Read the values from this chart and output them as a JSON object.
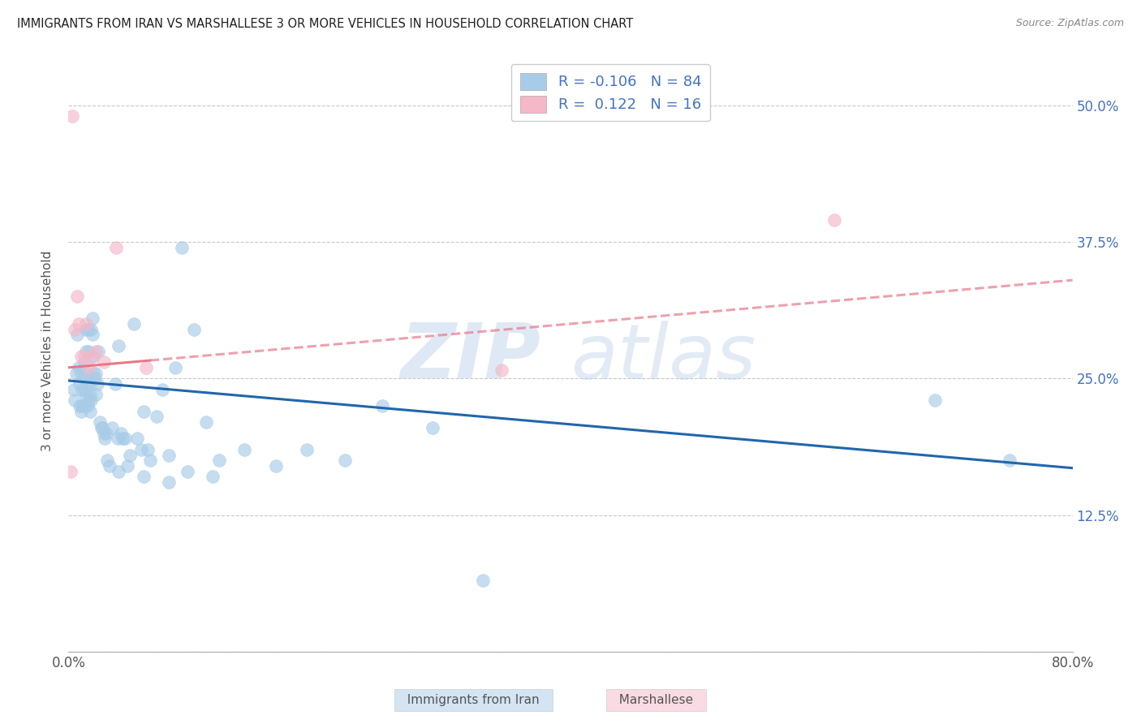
{
  "title": "IMMIGRANTS FROM IRAN VS MARSHALLESE 3 OR MORE VEHICLES IN HOUSEHOLD CORRELATION CHART",
  "source": "Source: ZipAtlas.com",
  "xlabel_blue": "Immigrants from Iran",
  "xlabel_pink": "Marshallese",
  "ylabel": "3 or more Vehicles in Household",
  "legend_blue_r": "-0.106",
  "legend_blue_n": "84",
  "legend_pink_r": "0.122",
  "legend_pink_n": "16",
  "blue_color": "#a8cce8",
  "pink_color": "#f4b8c8",
  "blue_line_color": "#2166ac",
  "pink_line_color": "#e8788a",
  "watermark_zip": "ZIP",
  "watermark_atlas": "atlas",
  "xlim": [
    0.0,
    0.8
  ],
  "ylim": [
    0.0,
    0.55
  ],
  "xticks": [
    0.0,
    0.1,
    0.2,
    0.3,
    0.4,
    0.5,
    0.6,
    0.7,
    0.8
  ],
  "yticks": [
    0.0,
    0.125,
    0.25,
    0.375,
    0.5
  ],
  "blue_x": [
    0.004,
    0.005,
    0.006,
    0.007,
    0.008,
    0.009,
    0.009,
    0.01,
    0.01,
    0.011,
    0.011,
    0.012,
    0.012,
    0.013,
    0.013,
    0.013,
    0.014,
    0.014,
    0.014,
    0.015,
    0.015,
    0.015,
    0.016,
    0.016,
    0.016,
    0.017,
    0.017,
    0.017,
    0.018,
    0.018,
    0.019,
    0.019,
    0.02,
    0.02,
    0.021,
    0.022,
    0.022,
    0.023,
    0.024,
    0.025,
    0.026,
    0.027,
    0.028,
    0.029,
    0.03,
    0.031,
    0.033,
    0.035,
    0.037,
    0.039,
    0.04,
    0.042,
    0.043,
    0.045,
    0.047,
    0.049,
    0.052,
    0.055,
    0.058,
    0.06,
    0.063,
    0.065,
    0.07,
    0.075,
    0.08,
    0.085,
    0.09,
    0.1,
    0.11,
    0.12,
    0.14,
    0.165,
    0.19,
    0.22,
    0.25,
    0.29,
    0.33,
    0.04,
    0.06,
    0.08,
    0.095,
    0.115,
    0.69,
    0.75
  ],
  "blue_y": [
    0.24,
    0.23,
    0.255,
    0.29,
    0.26,
    0.245,
    0.225,
    0.255,
    0.22,
    0.24,
    0.225,
    0.25,
    0.225,
    0.265,
    0.24,
    0.225,
    0.295,
    0.275,
    0.235,
    0.255,
    0.245,
    0.225,
    0.295,
    0.275,
    0.23,
    0.245,
    0.235,
    0.22,
    0.295,
    0.23,
    0.305,
    0.29,
    0.27,
    0.255,
    0.25,
    0.255,
    0.235,
    0.245,
    0.275,
    0.21,
    0.205,
    0.205,
    0.2,
    0.195,
    0.2,
    0.175,
    0.17,
    0.205,
    0.245,
    0.195,
    0.28,
    0.2,
    0.195,
    0.195,
    0.17,
    0.18,
    0.3,
    0.195,
    0.185,
    0.22,
    0.185,
    0.175,
    0.215,
    0.24,
    0.18,
    0.26,
    0.37,
    0.295,
    0.21,
    0.175,
    0.185,
    0.17,
    0.185,
    0.175,
    0.225,
    0.205,
    0.065,
    0.165,
    0.16,
    0.155,
    0.165,
    0.16,
    0.23,
    0.175
  ],
  "pink_x": [
    0.002,
    0.003,
    0.005,
    0.007,
    0.008,
    0.01,
    0.013,
    0.014,
    0.016,
    0.019,
    0.022,
    0.028,
    0.038,
    0.062,
    0.345,
    0.61
  ],
  "pink_y": [
    0.165,
    0.49,
    0.295,
    0.325,
    0.3,
    0.27,
    0.27,
    0.3,
    0.26,
    0.27,
    0.275,
    0.265,
    0.37,
    0.26,
    0.258,
    0.395
  ],
  "blue_trend_x": [
    0.0,
    0.8
  ],
  "blue_trend_y": [
    0.248,
    0.168
  ],
  "pink_trend_x": [
    0.0,
    0.8
  ],
  "pink_trend_y": [
    0.26,
    0.34
  ],
  "pink_dash_trend_x": [
    0.07,
    0.8
  ],
  "pink_dash_trend_y": [
    0.295,
    0.36
  ]
}
